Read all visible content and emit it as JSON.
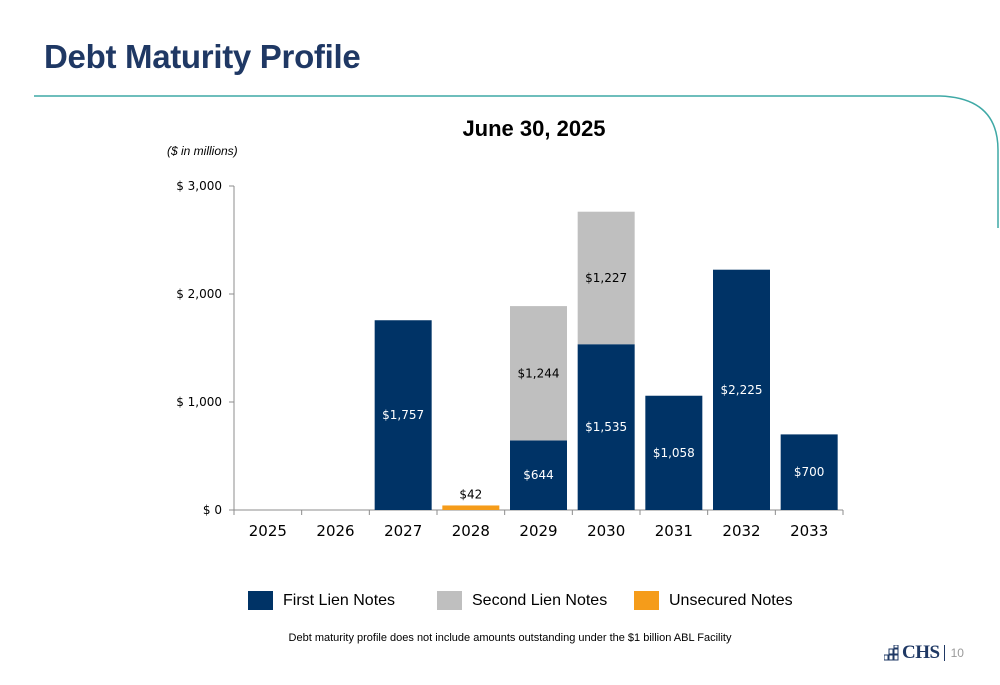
{
  "page": {
    "title": "Debt Maturity Profile",
    "footnote": "Debt maturity profile does not include amounts outstanding under the $1 billion ABL Facility",
    "logo_text": "CHS",
    "page_number": "10"
  },
  "colors": {
    "title": "#1f3864",
    "accent_line": "#3fa9a6",
    "first_lien": "#003366",
    "second_lien": "#bfbfbf",
    "unsecured": "#f59c1a"
  },
  "chart_data": {
    "type": "bar",
    "stacked": true,
    "title": "June 30, 2025",
    "units_note": "($ in millions)",
    "categories": [
      "2025",
      "2026",
      "2027",
      "2028",
      "2029",
      "2030",
      "2031",
      "2032",
      "2033"
    ],
    "ylim": [
      0,
      3000
    ],
    "yticks": [
      0,
      1000,
      2000,
      3000
    ],
    "ytick_labels": [
      "$ 0",
      "$ 1,000",
      "$ 2,000",
      "$ 3,000"
    ],
    "grid": false,
    "legend_position": "bottom",
    "series": [
      {
        "name": "First Lien Notes",
        "color": "#003366",
        "label_color": "#ffffff",
        "values": [
          0,
          0,
          1757,
          0,
          644,
          1535,
          1058,
          2225,
          700
        ],
        "labels": [
          "",
          "",
          "$1,757",
          "",
          "$644",
          "$1,535",
          "$1,058",
          "$2,225",
          "$700"
        ]
      },
      {
        "name": "Second Lien Notes",
        "color": "#bfbfbf",
        "label_color": "#000000",
        "values": [
          0,
          0,
          0,
          0,
          1244,
          1227,
          0,
          0,
          0
        ],
        "labels": [
          "",
          "",
          "",
          "",
          "$1,244",
          "$1,227",
          "",
          "",
          ""
        ]
      },
      {
        "name": "Unsecured Notes",
        "color": "#f59c1a",
        "label_color": "#000000",
        "values": [
          0,
          0,
          0,
          42,
          0,
          0,
          0,
          0,
          0
        ],
        "labels": [
          "",
          "",
          "",
          "$42",
          "",
          "",
          "",
          "",
          ""
        ]
      }
    ]
  }
}
